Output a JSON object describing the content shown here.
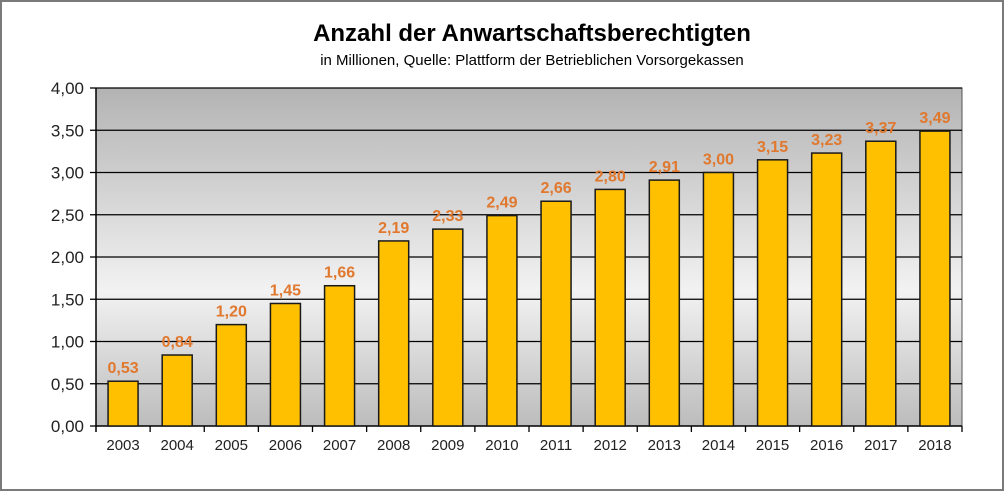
{
  "chart_data": {
    "type": "bar",
    "title": "Anzahl der Anwartschaftsberechtigten",
    "subtitle": "in Millionen, Quelle: Plattform der Betrieblichen Vorsorgekassen",
    "xlabel": "",
    "ylabel": "",
    "ylim": [
      0,
      4
    ],
    "yticks": [
      "0,00",
      "0,50",
      "1,00",
      "1,50",
      "2,00",
      "2,50",
      "3,00",
      "3,50",
      "4,00"
    ],
    "grid": true,
    "categories": [
      "2003",
      "2004",
      "2005",
      "2006",
      "2007",
      "2008",
      "2009",
      "2010",
      "2011",
      "2012",
      "2013",
      "2014",
      "2015",
      "2016",
      "2017",
      "2018"
    ],
    "values": [
      0.53,
      0.84,
      1.2,
      1.45,
      1.66,
      2.19,
      2.33,
      2.49,
      2.66,
      2.8,
      2.91,
      3.0,
      3.15,
      3.23,
      3.37,
      3.49
    ],
    "data_labels": [
      "0,53",
      "0,84",
      "1,20",
      "1,45",
      "1,66",
      "2,19",
      "2,33",
      "2,49",
      "2,66",
      "2,80",
      "2,91",
      "3,00",
      "3,15",
      "3,23",
      "3,37",
      "3,49"
    ],
    "colors": {
      "bar": "#ffc000",
      "label": "#e0782e"
    }
  }
}
